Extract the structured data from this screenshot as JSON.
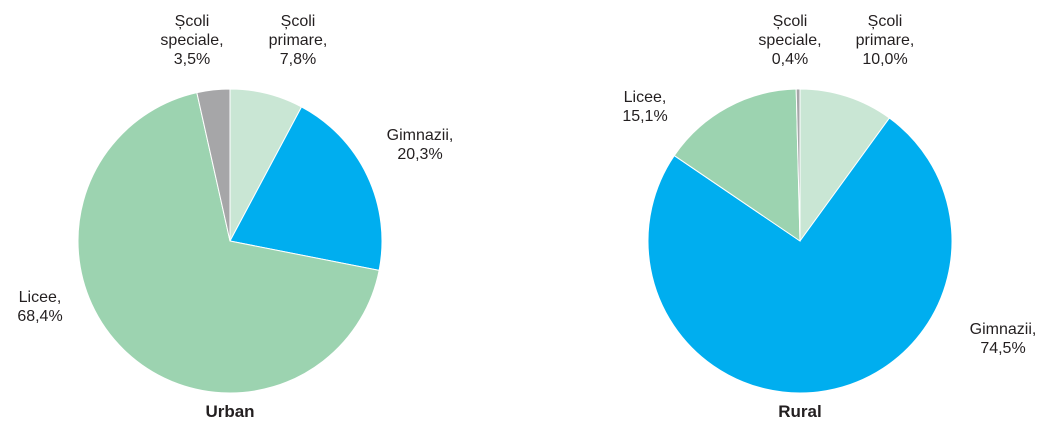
{
  "chart_data": [
    {
      "type": "pie",
      "title": "Urban",
      "categories": [
        "Școli primare,",
        "Gimnazii,",
        "Licee,",
        "Școli speciale,"
      ],
      "values": [
        7.8,
        20.3,
        68.4,
        3.5
      ],
      "value_labels": [
        "7,8%",
        "20,3%",
        "68,4%",
        "3,5%"
      ],
      "colors": [
        "#c9e6d4",
        "#00aeef",
        "#9cd3b0",
        "#a6a6a8"
      ]
    },
    {
      "type": "pie",
      "title": "Rural",
      "categories": [
        "Școli primare,",
        "Gimnazii,",
        "Licee,",
        "Școli speciale,"
      ],
      "values": [
        10.0,
        74.5,
        15.1,
        0.4
      ],
      "value_labels": [
        "10,0%",
        "74,5%",
        "15,1%",
        "0,4%"
      ],
      "colors": [
        "#c9e6d4",
        "#00aeef",
        "#9cd3b0",
        "#a6a6a8"
      ]
    }
  ]
}
